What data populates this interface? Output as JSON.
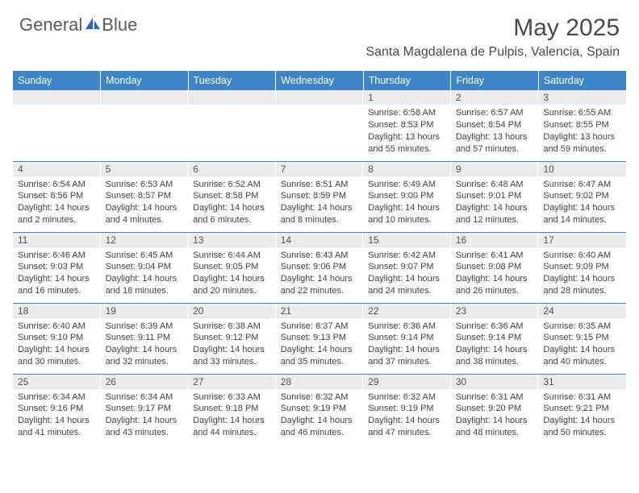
{
  "brand": {
    "part1": "General",
    "part2": "Blue"
  },
  "title": "May 2025",
  "location": "Santa Magdalena de Pulpis, Valencia, Spain",
  "colors": {
    "header_bg": "#3d85c6",
    "header_text": "#ffffff",
    "daynum_bg": "#ececec",
    "body_text": "#444444",
    "title_text": "#4a4a4a",
    "separator": "#3d85c6",
    "icon_fill": "#2a6bb0"
  },
  "daysOfWeek": [
    "Sunday",
    "Monday",
    "Tuesday",
    "Wednesday",
    "Thursday",
    "Friday",
    "Saturday"
  ],
  "startOffset": 4,
  "daysInMonth": 31,
  "cells": {
    "1": {
      "sunrise": "6:58 AM",
      "sunset": "8:53 PM",
      "daylight": "13 hours and 55 minutes."
    },
    "2": {
      "sunrise": "6:57 AM",
      "sunset": "8:54 PM",
      "daylight": "13 hours and 57 minutes."
    },
    "3": {
      "sunrise": "6:55 AM",
      "sunset": "8:55 PM",
      "daylight": "13 hours and 59 minutes."
    },
    "4": {
      "sunrise": "6:54 AM",
      "sunset": "8:56 PM",
      "daylight": "14 hours and 2 minutes."
    },
    "5": {
      "sunrise": "6:53 AM",
      "sunset": "8:57 PM",
      "daylight": "14 hours and 4 minutes."
    },
    "6": {
      "sunrise": "6:52 AM",
      "sunset": "8:58 PM",
      "daylight": "14 hours and 6 minutes."
    },
    "7": {
      "sunrise": "6:51 AM",
      "sunset": "8:59 PM",
      "daylight": "14 hours and 8 minutes."
    },
    "8": {
      "sunrise": "6:49 AM",
      "sunset": "9:00 PM",
      "daylight": "14 hours and 10 minutes."
    },
    "9": {
      "sunrise": "6:48 AM",
      "sunset": "9:01 PM",
      "daylight": "14 hours and 12 minutes."
    },
    "10": {
      "sunrise": "6:47 AM",
      "sunset": "9:02 PM",
      "daylight": "14 hours and 14 minutes."
    },
    "11": {
      "sunrise": "6:46 AM",
      "sunset": "9:03 PM",
      "daylight": "14 hours and 16 minutes."
    },
    "12": {
      "sunrise": "6:45 AM",
      "sunset": "9:04 PM",
      "daylight": "14 hours and 18 minutes."
    },
    "13": {
      "sunrise": "6:44 AM",
      "sunset": "9:05 PM",
      "daylight": "14 hours and 20 minutes."
    },
    "14": {
      "sunrise": "6:43 AM",
      "sunset": "9:06 PM",
      "daylight": "14 hours and 22 minutes."
    },
    "15": {
      "sunrise": "6:42 AM",
      "sunset": "9:07 PM",
      "daylight": "14 hours and 24 minutes."
    },
    "16": {
      "sunrise": "6:41 AM",
      "sunset": "9:08 PM",
      "daylight": "14 hours and 26 minutes."
    },
    "17": {
      "sunrise": "6:40 AM",
      "sunset": "9:09 PM",
      "daylight": "14 hours and 28 minutes."
    },
    "18": {
      "sunrise": "6:40 AM",
      "sunset": "9:10 PM",
      "daylight": "14 hours and 30 minutes."
    },
    "19": {
      "sunrise": "6:39 AM",
      "sunset": "9:11 PM",
      "daylight": "14 hours and 32 minutes."
    },
    "20": {
      "sunrise": "6:38 AM",
      "sunset": "9:12 PM",
      "daylight": "14 hours and 33 minutes."
    },
    "21": {
      "sunrise": "6:37 AM",
      "sunset": "9:13 PM",
      "daylight": "14 hours and 35 minutes."
    },
    "22": {
      "sunrise": "6:36 AM",
      "sunset": "9:14 PM",
      "daylight": "14 hours and 37 minutes."
    },
    "23": {
      "sunrise": "6:36 AM",
      "sunset": "9:14 PM",
      "daylight": "14 hours and 38 minutes."
    },
    "24": {
      "sunrise": "6:35 AM",
      "sunset": "9:15 PM",
      "daylight": "14 hours and 40 minutes."
    },
    "25": {
      "sunrise": "6:34 AM",
      "sunset": "9:16 PM",
      "daylight": "14 hours and 41 minutes."
    },
    "26": {
      "sunrise": "6:34 AM",
      "sunset": "9:17 PM",
      "daylight": "14 hours and 43 minutes."
    },
    "27": {
      "sunrise": "6:33 AM",
      "sunset": "9:18 PM",
      "daylight": "14 hours and 44 minutes."
    },
    "28": {
      "sunrise": "6:32 AM",
      "sunset": "9:19 PM",
      "daylight": "14 hours and 46 minutes."
    },
    "29": {
      "sunrise": "6:32 AM",
      "sunset": "9:19 PM",
      "daylight": "14 hours and 47 minutes."
    },
    "30": {
      "sunrise": "6:31 AM",
      "sunset": "9:20 PM",
      "daylight": "14 hours and 48 minutes."
    },
    "31": {
      "sunrise": "6:31 AM",
      "sunset": "9:21 PM",
      "daylight": "14 hours and 50 minutes."
    }
  },
  "labels": {
    "sunrise": "Sunrise:",
    "sunset": "Sunset:",
    "daylight": "Daylight:"
  }
}
